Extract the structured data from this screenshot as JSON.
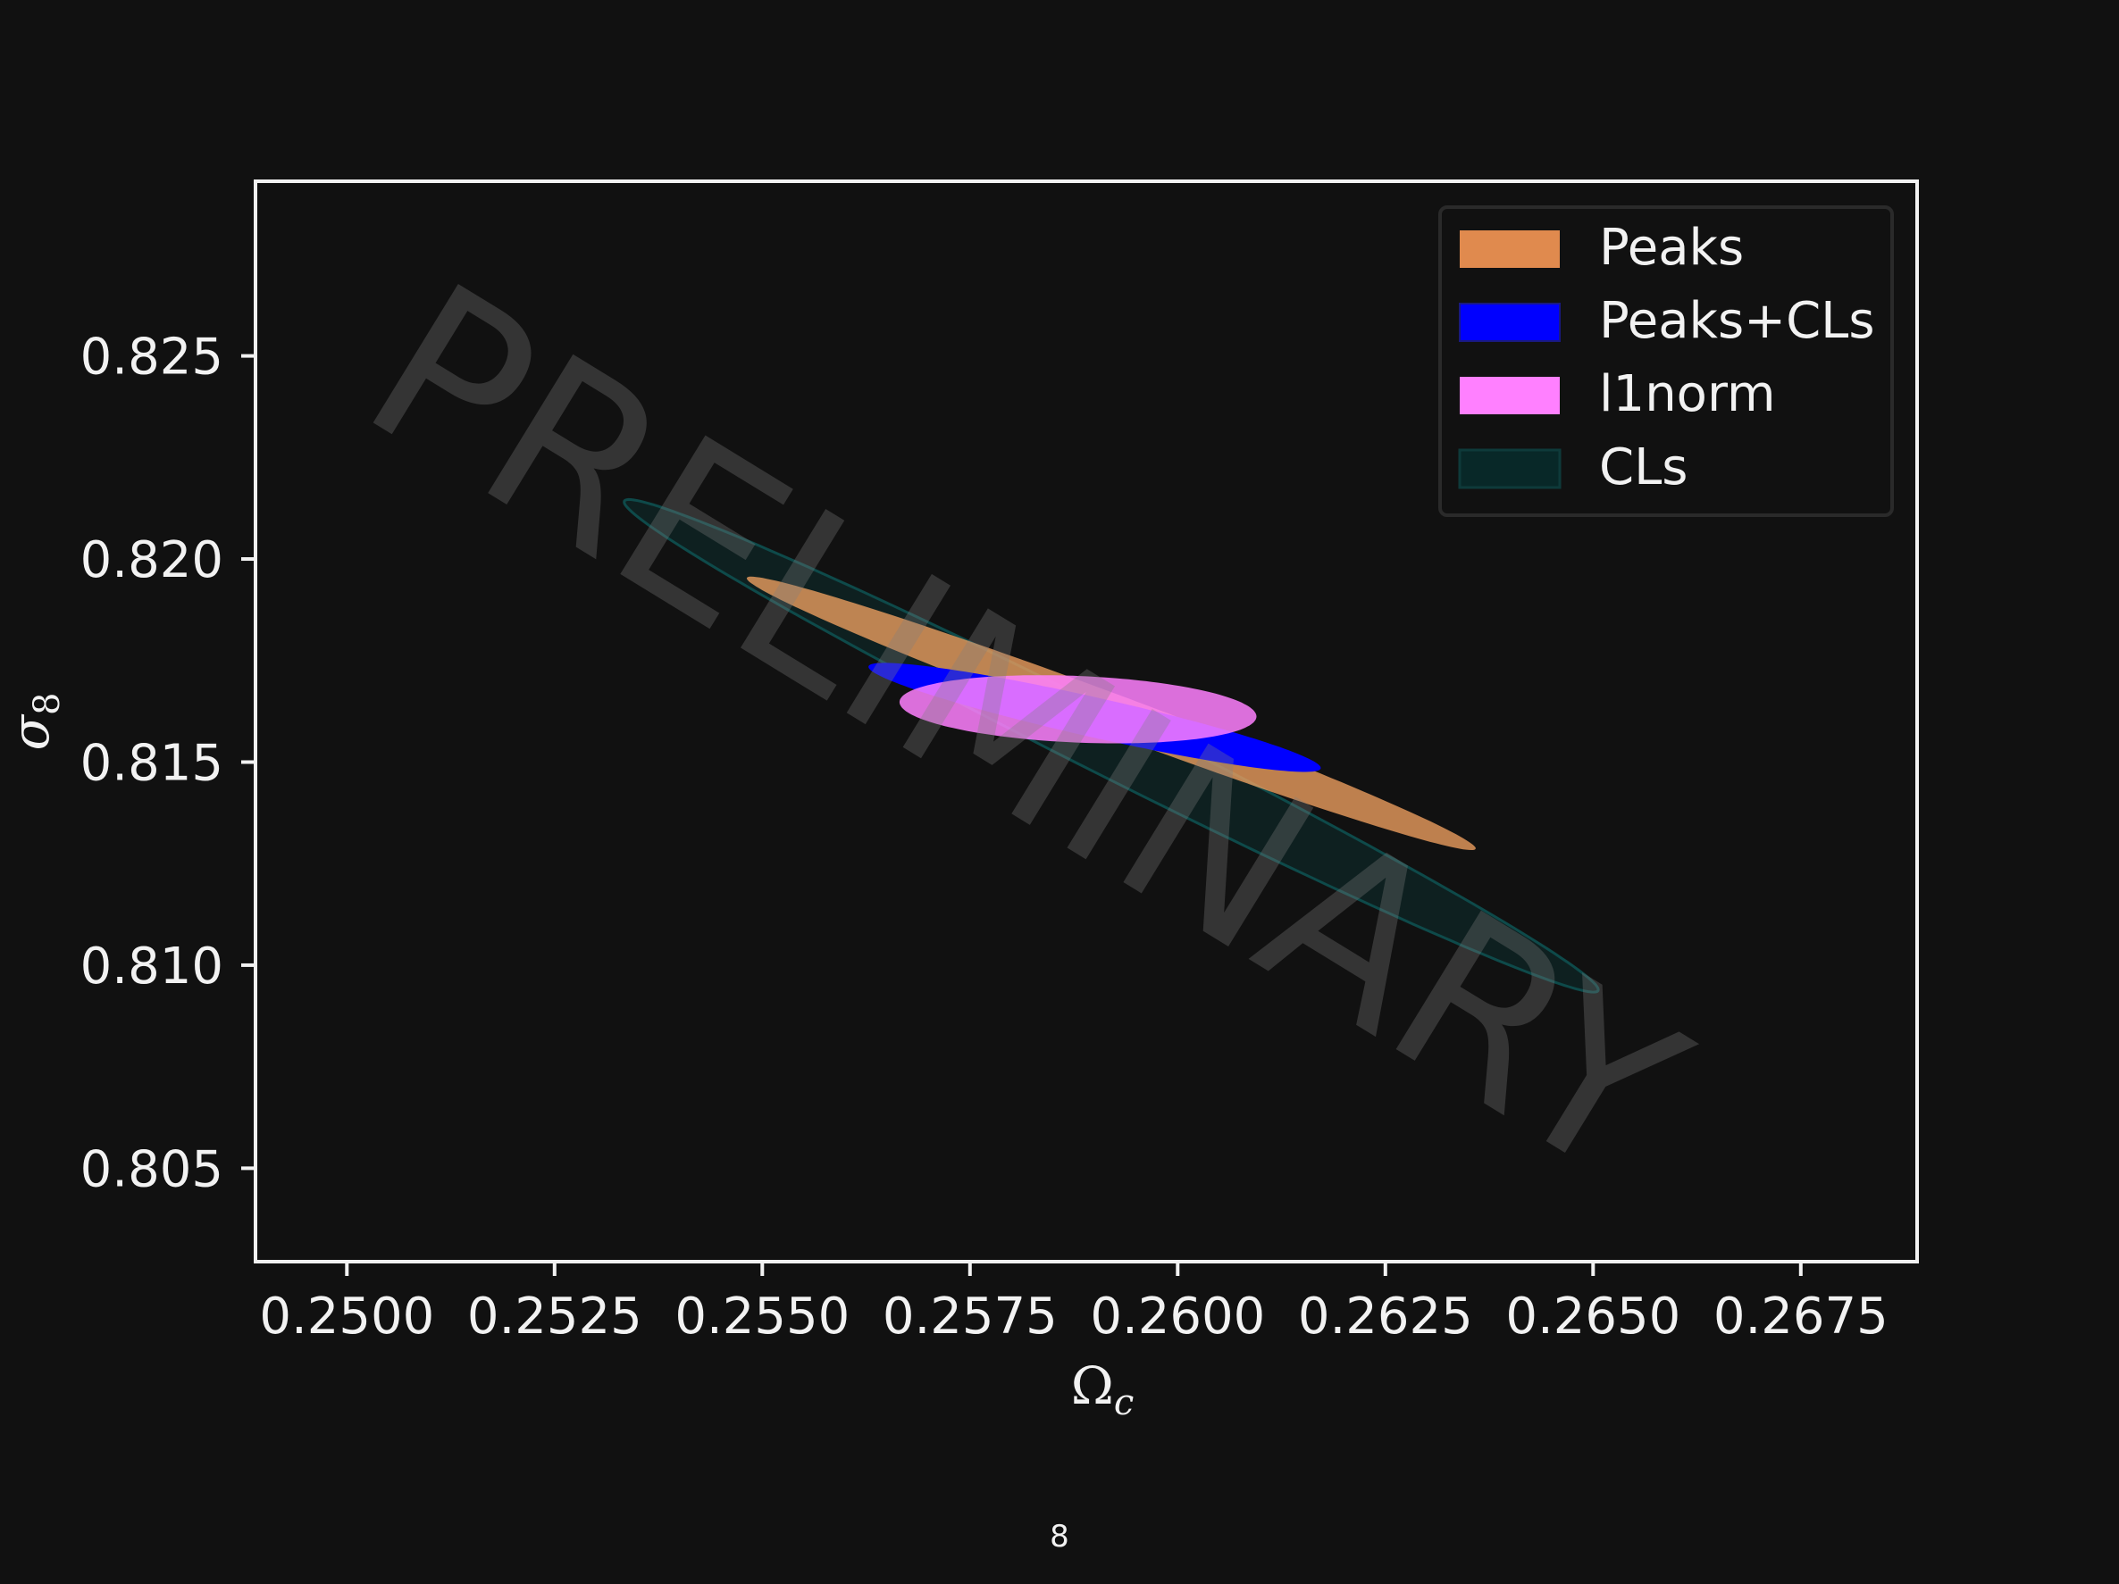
{
  "chart_data": {
    "type": "contour",
    "xlabel": "Ω",
    "xlabel_sub": "c",
    "ylabel": "σ",
    "ylabel_sub": "8",
    "xlim": [
      0.2489,
      0.2689
    ],
    "ylim": [
      0.8027,
      0.8293
    ],
    "xticks": [
      0.25,
      0.2525,
      0.255,
      0.2575,
      0.26,
      0.2625,
      0.265,
      0.2675
    ],
    "xtick_labels": [
      "0.2500",
      "0.2525",
      "0.2550",
      "0.2575",
      "0.2600",
      "0.2625",
      "0.2650",
      "0.2675"
    ],
    "yticks": [
      0.805,
      0.81,
      0.815,
      0.82,
      0.825
    ],
    "ytick_labels": [
      "0.805",
      "0.810",
      "0.815",
      "0.820",
      "0.825"
    ],
    "grid": false,
    "legend_position": "top-right",
    "series": [
      {
        "name": "CLs",
        "center": [
          0.2592,
          0.8154
        ],
        "semi_major": 0.00656,
        "semi_minor": 0.00076,
        "angle_deg": -26.7,
        "color": "#0d2e2e",
        "opacity": 0.55,
        "edge": "#0e4a4a"
      },
      {
        "name": "Peaks",
        "center": [
          0.2592,
          0.8162
        ],
        "semi_major": 0.00468,
        "semi_minor": 0.00049,
        "angle_deg": -20.4,
        "color": "#f0a060",
        "opacity": 0.78
      },
      {
        "name": "Peaks+CLs",
        "center": [
          0.259,
          0.8161
        ],
        "semi_major": 0.00279,
        "semi_minor": 0.00049,
        "angle_deg": -12.7,
        "color": "#0000ff",
        "opacity": 1.0
      },
      {
        "name": "l1norm",
        "center": [
          0.2588,
          0.8163
        ],
        "semi_major": 0.00215,
        "semi_minor": 0.00082,
        "angle_deg": -2.4,
        "color": "#ff80ff",
        "opacity": 0.85
      }
    ],
    "legend_order": [
      "Peaks",
      "Peaks+CLs",
      "l1norm",
      "CLs"
    ],
    "legend_colors": [
      "#e08a4e",
      "#0000ff",
      "#ff80ff",
      "#082828"
    ],
    "watermark": "PRELIMINARY"
  },
  "page_number": "8"
}
